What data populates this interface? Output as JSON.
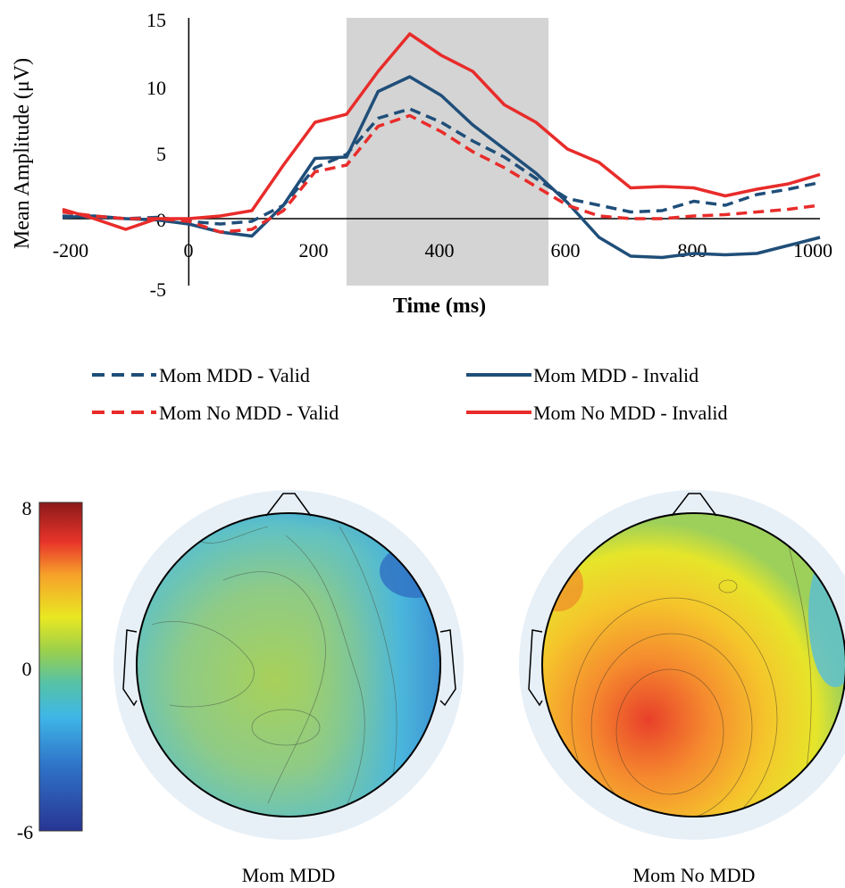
{
  "chart_data": [
    {
      "type": "line",
      "title": "",
      "xlabel": "Time (ms)",
      "ylabel": "Mean Amplitude (μV)",
      "xlim": [
        -200,
        1000
      ],
      "ylim": [
        -5,
        15
      ],
      "x_ticks": [
        "-200",
        "0",
        "200",
        "400",
        "600",
        "800",
        "1000"
      ],
      "y_ticks": [
        "15",
        "10",
        "5",
        "0",
        "-5"
      ],
      "highlight_window": [
        250,
        570
      ],
      "legend_position": "below",
      "x": [
        -200,
        -150,
        -100,
        -50,
        0,
        50,
        100,
        150,
        200,
        250,
        300,
        350,
        400,
        450,
        500,
        550,
        600,
        650,
        700,
        750,
        800,
        850,
        900,
        950,
        1000
      ],
      "series": [
        {
          "name": "Mom MDD - Valid",
          "color": "#1f4e79",
          "dash": true,
          "values": [
            0.2,
            0.1,
            0.0,
            0.1,
            -0.2,
            -0.4,
            -0.2,
            1.0,
            3.8,
            4.8,
            7.5,
            8.2,
            7.2,
            5.8,
            4.6,
            3.0,
            1.5,
            1.0,
            0.5,
            0.6,
            1.3,
            1.0,
            1.8,
            2.2,
            2.7
          ]
        },
        {
          "name": "Mom MDD - Invalid",
          "color": "#1f4e79",
          "dash": false,
          "values": [
            0.1,
            0.2,
            0.0,
            -0.1,
            -0.4,
            -1.0,
            -1.3,
            1.0,
            4.5,
            4.6,
            9.5,
            10.6,
            9.2,
            7.0,
            5.2,
            3.4,
            1.2,
            -1.4,
            -2.8,
            -2.9,
            -2.6,
            -2.7,
            -2.6,
            -2.0,
            -1.4
          ]
        },
        {
          "name": "Mom No MDD - Valid",
          "color": "#e82c2a",
          "dash": true,
          "values": [
            0.5,
            0.2,
            0.0,
            0.0,
            -0.2,
            -1.0,
            -0.8,
            0.6,
            3.5,
            4.0,
            6.9,
            7.7,
            6.5,
            5.0,
            3.8,
            2.4,
            1.0,
            0.2,
            0.0,
            0.0,
            0.2,
            0.3,
            0.5,
            0.7,
            1.0
          ]
        },
        {
          "name": "Mom No MDD - Invalid",
          "color": "#e82c2a",
          "dash": false,
          "values": [
            0.7,
            0.0,
            -0.8,
            0.0,
            0.0,
            0.2,
            0.6,
            4.0,
            7.2,
            7.8,
            11.0,
            13.8,
            12.2,
            11.0,
            8.5,
            7.2,
            5.2,
            4.2,
            2.3,
            2.4,
            2.3,
            1.7,
            2.2,
            2.6,
            3.3
          ]
        }
      ]
    },
    {
      "type": "heatmap",
      "scale_ticks": [
        "8",
        "0",
        "-6"
      ],
      "scale_range": [
        -6,
        8
      ],
      "maps": [
        {
          "label": "Mom MDD",
          "summary_color": "green-blue"
        },
        {
          "label": "Mom No MDD",
          "summary_color": "yellow-red"
        }
      ]
    }
  ]
}
